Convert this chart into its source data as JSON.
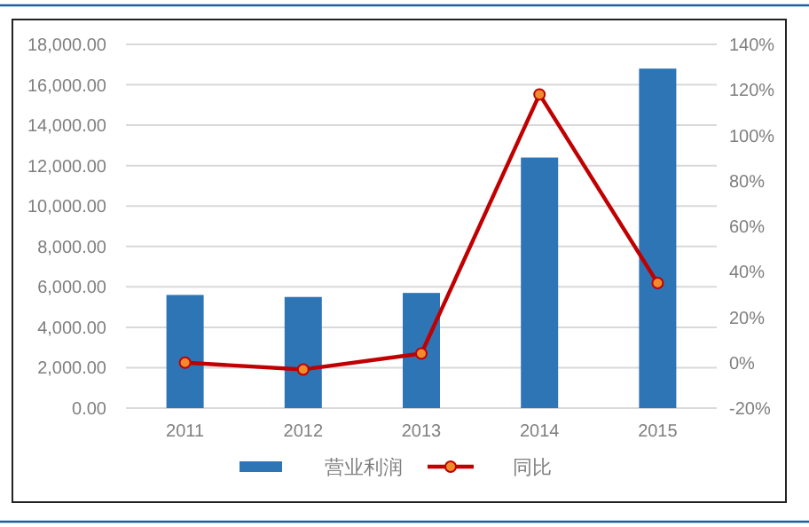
{
  "chart_data": {
    "type": "bar",
    "categories": [
      "2011",
      "2012",
      "2013",
      "2014",
      "2015"
    ],
    "series": [
      {
        "name": "营业利润",
        "color": "#2e75b6",
        "values": [
          5600,
          5500,
          5700,
          12400,
          16800
        ]
      },
      {
        "name": "同比",
        "type": "line",
        "axis": "y2",
        "color": "#c00000",
        "values": [
          0,
          -3,
          4,
          118,
          35
        ]
      }
    ],
    "ylim": [
      0,
      18000
    ],
    "yticks": [
      {
        "value": 0,
        "label": "0.00"
      },
      {
        "value": 2000,
        "label": "2,000.00"
      },
      {
        "value": 4000,
        "label": "4,000.00"
      },
      {
        "value": 6000,
        "label": "6,000.00"
      },
      {
        "value": 8000,
        "label": "8,000.00"
      },
      {
        "value": 10000,
        "label": "10,000.00"
      },
      {
        "value": 12000,
        "label": "12,000.00"
      },
      {
        "value": 14000,
        "label": "14,000.00"
      },
      {
        "value": 16000,
        "label": "16,000.00"
      },
      {
        "value": 18000,
        "label": "18,000.00"
      }
    ],
    "y2lim": [
      -20,
      140
    ],
    "y2ticks": [
      {
        "value": -20,
        "label": "-20%"
      },
      {
        "value": 0,
        "label": "0%"
      },
      {
        "value": 20,
        "label": "20%"
      },
      {
        "value": 40,
        "label": "40%"
      },
      {
        "value": 60,
        "label": "60%"
      },
      {
        "value": 80,
        "label": "80%"
      },
      {
        "value": 100,
        "label": "100%"
      },
      {
        "value": 120,
        "label": "120%"
      },
      {
        "value": 140,
        "label": "140%"
      }
    ],
    "grid": "y",
    "legend": "bottom",
    "marker": "circle"
  }
}
